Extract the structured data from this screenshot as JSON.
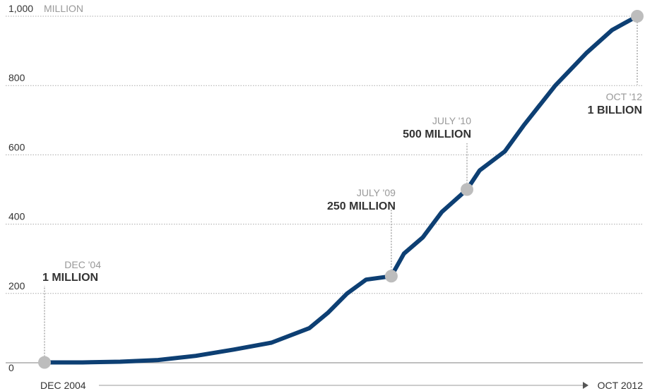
{
  "chart_data": {
    "type": "line",
    "title": "",
    "xlabel": "",
    "ylabel": "",
    "ylim": [
      0,
      1000
    ],
    "y_ticks": [
      0,
      200,
      400,
      600,
      800,
      1000
    ],
    "y_tick_labels": [
      "0",
      "200",
      "400",
      "600",
      "800",
      "1,000"
    ],
    "y_unit_label": "MILLION",
    "x_start_label": "DEC 2004",
    "x_end_label": "OCT 2012",
    "grid": true,
    "x_range": [
      "2004-12",
      "2012-10"
    ],
    "series": [
      {
        "x": [
          "2004-12",
          "2005-06",
          "2005-12",
          "2006-06",
          "2006-12",
          "2007-06",
          "2007-12",
          "2008-06",
          "2008-09",
          "2008-12",
          "2009-03",
          "2009-07",
          "2009-09",
          "2009-12",
          "2010-03",
          "2010-07",
          "2010-09",
          "2011-01",
          "2011-04",
          "2011-09",
          "2012-02",
          "2012-06",
          "2012-08",
          "2012-10"
        ],
        "values": [
          1,
          1,
          3,
          8,
          20,
          38,
          58,
          100,
          145,
          200,
          240,
          250,
          315,
          362,
          435,
          500,
          555,
          610,
          685,
          800,
          895,
          960,
          980,
          1000
        ]
      }
    ],
    "annotations": [
      {
        "date": "DEC '04",
        "value": "1 MILLION",
        "x": "2004-12",
        "y": 1
      },
      {
        "date": "JULY '09",
        "value": "250 MILLION",
        "x": "2009-07",
        "y": 250
      },
      {
        "date": "JULY '10",
        "value": "500 MILLION",
        "x": "2010-07",
        "y": 500
      },
      {
        "date": "OCT '12",
        "value": "1 BILLION",
        "x": "2012-10",
        "y": 1000
      }
    ],
    "colors": {
      "line": "#0d3f73",
      "marker": "#bdbdbd",
      "grid": "#aaaaaa",
      "baseline": "#999999",
      "leader": "#aaaaaa"
    }
  }
}
